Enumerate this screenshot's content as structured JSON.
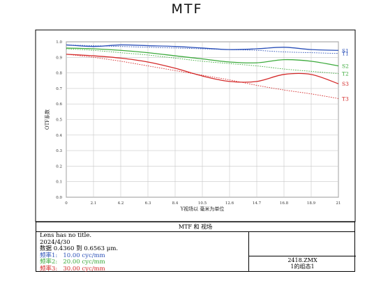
{
  "page_title": "MTF",
  "chart_data": {
    "type": "line",
    "title": "MTF",
    "xlabel": "Y视场以 毫米为单位",
    "ylabel": "OTF系数",
    "xlim": [
      0,
      21
    ],
    "ylim": [
      0,
      1.0
    ],
    "x_ticks": [
      "0",
      "2.1",
      "4.2",
      "6.3",
      "8.4",
      "10.5",
      "12.6",
      "14.7",
      "16.8",
      "18.9",
      "21"
    ],
    "y_ticks": [
      "0.0",
      "0.1",
      "0.2",
      "0.3",
      "0.4",
      "0.5",
      "0.6",
      "0.7",
      "0.8",
      "0.9",
      "1.0"
    ],
    "grid": true,
    "series": [
      {
        "name": "S1",
        "color": "#2b50b8",
        "dashed": false,
        "x": [
          0,
          2.1,
          4.2,
          6.3,
          8.4,
          10.5,
          12.6,
          14.7,
          16.8,
          18.9,
          21
        ],
        "y": [
          0.98,
          0.97,
          0.98,
          0.975,
          0.97,
          0.96,
          0.95,
          0.955,
          0.965,
          0.95,
          0.945
        ]
      },
      {
        "name": "T1",
        "color": "#2b50b8",
        "dashed": true,
        "x": [
          0,
          2.1,
          4.2,
          6.3,
          8.4,
          10.5,
          12.6,
          14.7,
          16.8,
          18.9,
          21
        ],
        "y": [
          0.98,
          0.975,
          0.97,
          0.965,
          0.96,
          0.955,
          0.95,
          0.945,
          0.935,
          0.93,
          0.925
        ]
      },
      {
        "name": "S2",
        "color": "#3caa3c",
        "dashed": false,
        "x": [
          0,
          2.1,
          4.2,
          6.3,
          8.4,
          10.5,
          12.6,
          14.7,
          16.8,
          18.9,
          21
        ],
        "y": [
          0.96,
          0.955,
          0.945,
          0.93,
          0.91,
          0.89,
          0.87,
          0.865,
          0.885,
          0.875,
          0.845
        ]
      },
      {
        "name": "T2",
        "color": "#3caa3c",
        "dashed": true,
        "x": [
          0,
          2.1,
          4.2,
          6.3,
          8.4,
          10.5,
          12.6,
          14.7,
          16.8,
          18.9,
          21
        ],
        "y": [
          0.955,
          0.945,
          0.93,
          0.915,
          0.895,
          0.875,
          0.86,
          0.845,
          0.825,
          0.81,
          0.795
        ]
      },
      {
        "name": "S3",
        "color": "#d42a2a",
        "dashed": false,
        "x": [
          0,
          2.1,
          4.2,
          6.3,
          8.4,
          10.5,
          12.6,
          14.7,
          16.8,
          18.9,
          21
        ],
        "y": [
          0.92,
          0.91,
          0.895,
          0.87,
          0.83,
          0.78,
          0.745,
          0.745,
          0.79,
          0.79,
          0.73
        ]
      },
      {
        "name": "T3",
        "color": "#d42a2a",
        "dashed": true,
        "x": [
          0,
          2.1,
          4.2,
          6.3,
          8.4,
          10.5,
          12.6,
          14.7,
          16.8,
          18.9,
          21
        ],
        "y": [
          0.92,
          0.9,
          0.875,
          0.845,
          0.815,
          0.785,
          0.755,
          0.72,
          0.69,
          0.665,
          0.635
        ]
      }
    ]
  },
  "info": {
    "header": "MTF 和 视场",
    "lens": "Lens has no title.",
    "date": "2024/4/30",
    "data_range": "数据 0.4360 到 0.6563 μm.",
    "freqs": [
      {
        "label": "频率1:   10.00 cyc/mm",
        "color": "#2b50b8"
      },
      {
        "label": "频率2:   20.00 cyc/mm",
        "color": "#3caa3c"
      },
      {
        "label": "频率3:   30.00 cyc/mm",
        "color": "#d42a2a"
      }
    ],
    "file": "2418.ZMX",
    "config": "1的组态1"
  }
}
